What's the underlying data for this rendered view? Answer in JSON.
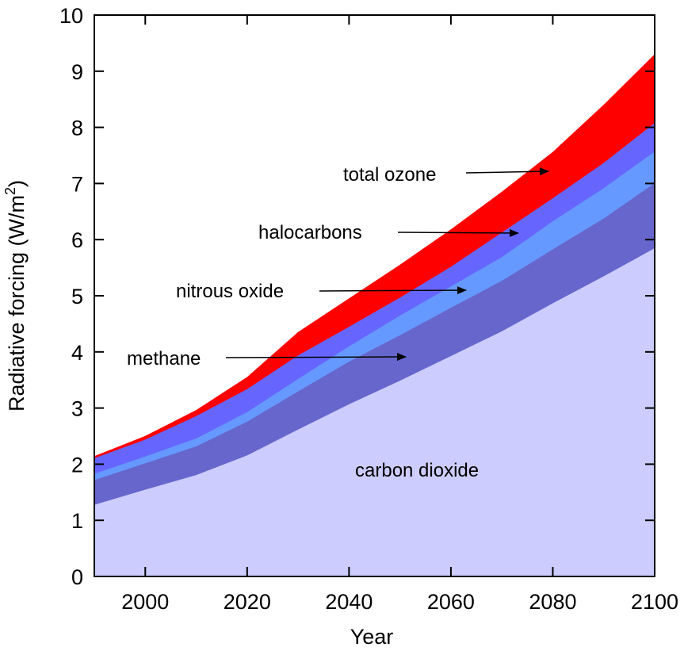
{
  "chart_data": {
    "type": "area",
    "stacked": true,
    "xlabel": "Year",
    "ylabel": "Radiative forcing (W/m2)",
    "ylabel_parts": {
      "main": "Radiative forcing (W/m",
      "sup": "2",
      "close": ")"
    },
    "xlim": [
      1990,
      2100
    ],
    "ylim": [
      0,
      10
    ],
    "x_ticks": [
      2000,
      2020,
      2040,
      2060,
      2080,
      2100
    ],
    "y_ticks": [
      0,
      1,
      2,
      3,
      4,
      5,
      6,
      7,
      8,
      9,
      10
    ],
    "grid": false,
    "x": [
      1990,
      2000,
      2010,
      2020,
      2030,
      2040,
      2050,
      2060,
      2070,
      2080,
      2090,
      2100
    ],
    "series": [
      {
        "name": "carbon dioxide",
        "color": "#ccccff",
        "values": [
          1.28,
          1.55,
          1.81,
          2.16,
          2.62,
          3.07,
          3.49,
          3.93,
          4.37,
          4.87,
          5.35,
          5.85
        ]
      },
      {
        "name": "methane",
        "color": "#6666cc",
        "values": [
          0.44,
          0.47,
          0.51,
          0.6,
          0.68,
          0.76,
          0.81,
          0.86,
          0.9,
          0.96,
          1.03,
          1.16
        ]
      },
      {
        "name": "nitrous oxide",
        "color": "#6699ff",
        "values": [
          0.11,
          0.12,
          0.14,
          0.17,
          0.22,
          0.27,
          0.35,
          0.38,
          0.42,
          0.5,
          0.54,
          0.56
        ]
      },
      {
        "name": "halocarbons",
        "color": "#6666ff",
        "values": [
          0.28,
          0.3,
          0.4,
          0.41,
          0.42,
          0.35,
          0.32,
          0.35,
          0.44,
          0.41,
          0.45,
          0.51
        ]
      },
      {
        "name": "total ozone",
        "color": "#ff0000",
        "values": [
          0.03,
          0.06,
          0.1,
          0.21,
          0.41,
          0.5,
          0.58,
          0.66,
          0.72,
          0.82,
          1.03,
          1.22
        ]
      }
    ],
    "annotations": [
      {
        "text": "total ozone",
        "arrow": true
      },
      {
        "text": "halocarbons",
        "arrow": true
      },
      {
        "text": "nitrous oxide",
        "arrow": true
      },
      {
        "text": "methane",
        "arrow": true
      },
      {
        "text": "carbon dioxide",
        "arrow": false
      }
    ]
  }
}
